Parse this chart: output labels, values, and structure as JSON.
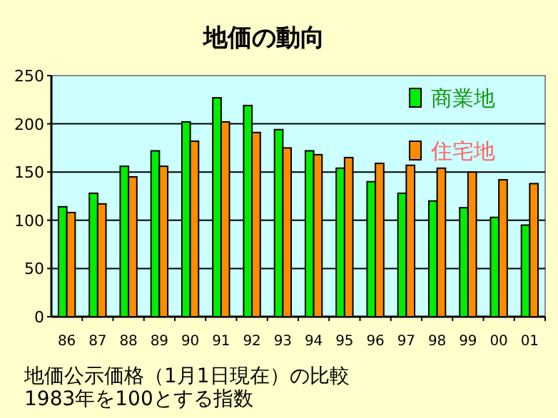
{
  "chart_data": {
    "type": "bar",
    "title": "地価の動向",
    "categories": [
      "86",
      "87",
      "88",
      "89",
      "90",
      "91",
      "92",
      "93",
      "94",
      "95",
      "96",
      "97",
      "98",
      "99",
      "00",
      "01"
    ],
    "series": [
      {
        "name": "商業地",
        "color": "#00ee00",
        "values": [
          114,
          128,
          156,
          172,
          202,
          227,
          219,
          194,
          172,
          154,
          140,
          128,
          120,
          113,
          103,
          95
        ]
      },
      {
        "name": "住宅地",
        "color": "#ff8c00",
        "values": [
          108,
          117,
          145,
          156,
          182,
          202,
          191,
          175,
          168,
          165,
          159,
          157,
          154,
          150,
          142,
          138
        ]
      }
    ],
    "ylim": [
      0,
      250
    ],
    "yticks": [
      0,
      50,
      100,
      150,
      200,
      250
    ],
    "grid": "y",
    "legend": "top right",
    "annotations": [
      "地価公示価格（1月1日現在）の比較",
      "1983年を100とする指数"
    ]
  }
}
